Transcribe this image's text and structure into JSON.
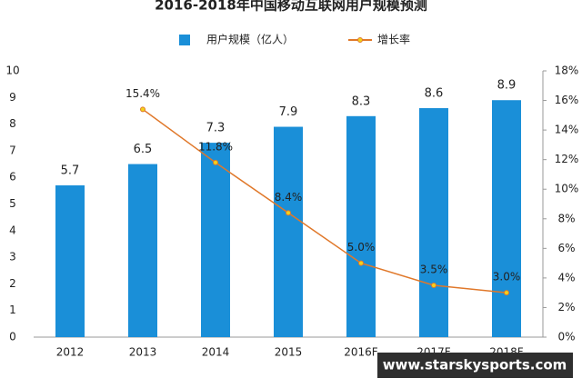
{
  "chart_data": {
    "type": "bar",
    "title": "2016-2018年中国移动互联网用户规模预测",
    "categories": [
      "2012",
      "2013",
      "2014",
      "2015",
      "2016F",
      "2017F",
      "2018F"
    ],
    "series": [
      {
        "name": "用户规模（亿人）",
        "type": "bar",
        "color": "#1a8fd8",
        "values": [
          5.7,
          6.5,
          7.3,
          7.9,
          8.3,
          8.6,
          8.9
        ]
      },
      {
        "name": "增长率",
        "type": "line",
        "axis": "y2",
        "color": "#e0782a",
        "marker_color": "#f2d21b",
        "values": [
          null,
          15.4,
          11.8,
          8.4,
          5.0,
          3.5,
          3.0
        ],
        "value_labels": [
          null,
          "15.4%",
          "11.8%",
          "8.4%",
          "5.0%",
          "3.5%",
          "3.0%"
        ]
      }
    ],
    "ylim": [
      0,
      10
    ],
    "yticks": [
      0,
      1,
      2,
      3,
      4,
      5,
      6,
      7,
      8,
      9,
      10
    ],
    "y2lim": [
      0,
      18
    ],
    "y2ticks": [
      {
        "value": 0,
        "label": "0%"
      },
      {
        "value": 2,
        "label": "2%"
      },
      {
        "value": 4,
        "label": "4%"
      },
      {
        "value": 6,
        "label": "6%"
      },
      {
        "value": 8,
        "label": "8%"
      },
      {
        "value": 10,
        "label": "10%"
      },
      {
        "value": 12,
        "label": "12%"
      },
      {
        "value": 14,
        "label": "14%"
      },
      {
        "value": 16,
        "label": "16%"
      },
      {
        "value": 18,
        "label": "18%"
      }
    ],
    "legend": "top"
  },
  "watermark": "www.starskysports.com"
}
